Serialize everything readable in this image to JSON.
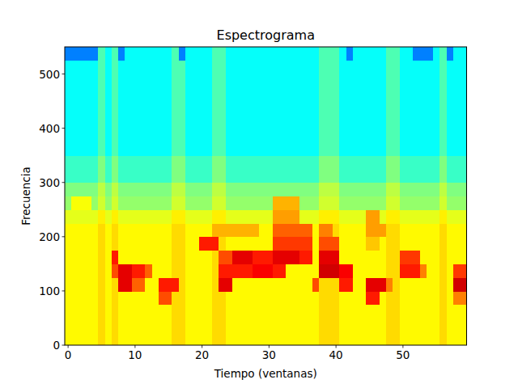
{
  "chart_data": {
    "type": "heatmap",
    "title": "Espectrograma",
    "x_label": "Tiempo (ventanas)",
    "y_label": "Frecuencia",
    "color": "jet",
    "x": [
      0,
      1,
      2,
      3,
      4,
      5,
      6,
      7,
      8,
      9,
      10,
      11,
      12,
      13,
      14,
      15,
      16,
      17,
      18,
      19,
      20,
      21,
      22,
      23,
      24,
      25,
      26,
      27,
      28,
      29,
      30,
      31,
      32,
      33,
      34,
      35,
      36,
      37,
      38,
      39,
      40,
      41,
      42,
      43,
      44,
      45,
      46,
      47,
      48,
      49,
      50,
      51,
      52,
      53,
      54,
      55,
      56,
      57,
      58,
      59
    ],
    "y_bins": [
      0,
      25,
      50,
      75,
      100,
      125,
      150,
      175,
      200,
      225,
      250,
      275,
      300,
      325,
      350,
      375,
      400,
      425,
      450,
      475,
      500,
      525,
      550
    ],
    "xlim": [
      -0.5,
      59.5
    ],
    "ylim": [
      0,
      550
    ],
    "xticks": [
      0,
      10,
      20,
      30,
      40,
      50
    ],
    "yticks": [
      0,
      100,
      200,
      300,
      400,
      500
    ],
    "zlim": [
      0,
      100
    ],
    "cells": [
      [
        63,
        63,
        63,
        63,
        63,
        66,
        63,
        66,
        63,
        63,
        63,
        63,
        63,
        63,
        63,
        63,
        66,
        66,
        63,
        63,
        63,
        63,
        66,
        66,
        63,
        63,
        63,
        63,
        63,
        63,
        63,
        63,
        63,
        63,
        63,
        63,
        63,
        63,
        66,
        66,
        66,
        63,
        63,
        63,
        63,
        63,
        63,
        63,
        66,
        66,
        63,
        63,
        63,
        63,
        63,
        63,
        66,
        63,
        63,
        63
      ],
      [
        63,
        63,
        63,
        63,
        63,
        66,
        63,
        66,
        63,
        63,
        63,
        63,
        63,
        63,
        63,
        63,
        66,
        66,
        63,
        63,
        63,
        63,
        66,
        66,
        63,
        63,
        63,
        63,
        63,
        63,
        63,
        63,
        63,
        63,
        63,
        63,
        63,
        63,
        66,
        66,
        66,
        63,
        63,
        63,
        63,
        63,
        63,
        63,
        66,
        66,
        63,
        63,
        63,
        63,
        63,
        63,
        66,
        63,
        63,
        63
      ],
      [
        63,
        63,
        63,
        63,
        63,
        66,
        63,
        66,
        63,
        63,
        63,
        63,
        63,
        63,
        63,
        63,
        66,
        66,
        63,
        63,
        63,
        63,
        66,
        66,
        63,
        63,
        63,
        63,
        63,
        63,
        63,
        63,
        63,
        63,
        63,
        63,
        63,
        63,
        66,
        66,
        66,
        63,
        63,
        63,
        63,
        63,
        63,
        63,
        66,
        66,
        63,
        63,
        63,
        63,
        63,
        63,
        66,
        63,
        63,
        63
      ],
      [
        63,
        63,
        63,
        63,
        63,
        66,
        63,
        66,
        63,
        63,
        63,
        63,
        63,
        63,
        80,
        80,
        66,
        66,
        63,
        63,
        63,
        63,
        66,
        66,
        63,
        63,
        63,
        63,
        63,
        63,
        63,
        63,
        63,
        63,
        63,
        63,
        63,
        63,
        66,
        66,
        66,
        63,
        63,
        63,
        63,
        85,
        85,
        63,
        66,
        66,
        63,
        63,
        63,
        63,
        63,
        63,
        66,
        63,
        75,
        75
      ],
      [
        63,
        63,
        63,
        63,
        63,
        66,
        63,
        66,
        90,
        90,
        78,
        78,
        63,
        63,
        85,
        85,
        85,
        66,
        63,
        63,
        63,
        63,
        66,
        90,
        90,
        63,
        63,
        63,
        63,
        63,
        63,
        63,
        63,
        63,
        63,
        63,
        63,
        80,
        66,
        66,
        66,
        85,
        85,
        63,
        63,
        90,
        90,
        90,
        75,
        66,
        63,
        63,
        63,
        63,
        63,
        63,
        66,
        63,
        92,
        92
      ],
      [
        63,
        63,
        63,
        63,
        63,
        66,
        63,
        80,
        90,
        90,
        85,
        85,
        78,
        63,
        63,
        63,
        66,
        66,
        63,
        63,
        63,
        63,
        66,
        85,
        85,
        85,
        85,
        85,
        88,
        88,
        88,
        85,
        85,
        63,
        63,
        63,
        63,
        63,
        92,
        92,
        92,
        88,
        88,
        63,
        63,
        63,
        63,
        63,
        66,
        66,
        85,
        85,
        85,
        75,
        63,
        63,
        66,
        63,
        82,
        82
      ],
      [
        63,
        63,
        63,
        63,
        63,
        66,
        63,
        85,
        63,
        63,
        63,
        63,
        63,
        63,
        63,
        63,
        66,
        66,
        63,
        63,
        63,
        63,
        66,
        80,
        80,
        90,
        90,
        90,
        85,
        85,
        85,
        90,
        90,
        90,
        90,
        85,
        85,
        63,
        90,
        90,
        90,
        63,
        63,
        63,
        63,
        63,
        63,
        63,
        66,
        66,
        82,
        82,
        82,
        63,
        63,
        63,
        66,
        63,
        63,
        63
      ],
      [
        63,
        63,
        63,
        63,
        63,
        66,
        63,
        66,
        63,
        63,
        63,
        63,
        63,
        63,
        63,
        63,
        66,
        66,
        63,
        63,
        85,
        85,
        85,
        66,
        63,
        63,
        63,
        63,
        63,
        63,
        63,
        82,
        82,
        82,
        82,
        82,
        82,
        63,
        80,
        80,
        80,
        63,
        63,
        63,
        63,
        68,
        68,
        63,
        66,
        66,
        63,
        63,
        63,
        63,
        63,
        63,
        66,
        63,
        63,
        63
      ],
      [
        63,
        63,
        63,
        63,
        63,
        66,
        63,
        66,
        63,
        63,
        63,
        63,
        63,
        63,
        63,
        63,
        66,
        66,
        63,
        63,
        63,
        63,
        70,
        70,
        70,
        70,
        70,
        70,
        70,
        63,
        63,
        78,
        78,
        78,
        78,
        78,
        78,
        63,
        75,
        75,
        66,
        63,
        63,
        63,
        63,
        72,
        72,
        72,
        66,
        66,
        63,
        63,
        63,
        63,
        63,
        63,
        66,
        63,
        63,
        63
      ],
      [
        60,
        60,
        60,
        60,
        60,
        64,
        60,
        64,
        60,
        60,
        60,
        60,
        60,
        60,
        60,
        60,
        64,
        64,
        60,
        60,
        60,
        60,
        64,
        64,
        60,
        60,
        60,
        60,
        60,
        60,
        60,
        72,
        72,
        72,
        72,
        60,
        60,
        60,
        64,
        64,
        64,
        60,
        60,
        60,
        60,
        72,
        72,
        60,
        64,
        64,
        60,
        60,
        60,
        60,
        60,
        60,
        64,
        60,
        60,
        60
      ],
      [
        52,
        62,
        62,
        62,
        52,
        58,
        52,
        58,
        52,
        52,
        52,
        52,
        52,
        52,
        52,
        52,
        58,
        58,
        52,
        52,
        52,
        52,
        58,
        58,
        52,
        52,
        52,
        52,
        52,
        52,
        52,
        70,
        70,
        70,
        70,
        52,
        52,
        52,
        58,
        58,
        58,
        52,
        52,
        52,
        52,
        52,
        52,
        52,
        58,
        58,
        52,
        52,
        52,
        52,
        52,
        52,
        58,
        52,
        52,
        52
      ],
      [
        50,
        50,
        50,
        50,
        50,
        56,
        50,
        56,
        50,
        50,
        50,
        50,
        50,
        50,
        50,
        50,
        56,
        56,
        50,
        50,
        50,
        50,
        56,
        56,
        50,
        50,
        50,
        50,
        50,
        50,
        50,
        50,
        50,
        50,
        50,
        50,
        50,
        50,
        56,
        56,
        56,
        50,
        50,
        50,
        50,
        50,
        50,
        50,
        56,
        56,
        50,
        50,
        50,
        50,
        50,
        50,
        56,
        50,
        50,
        50
      ],
      [
        43,
        43,
        43,
        43,
        43,
        50,
        43,
        50,
        43,
        43,
        43,
        43,
        43,
        43,
        43,
        43,
        50,
        50,
        43,
        43,
        43,
        43,
        50,
        50,
        43,
        43,
        43,
        43,
        43,
        43,
        43,
        43,
        43,
        43,
        43,
        43,
        43,
        43,
        50,
        50,
        50,
        43,
        43,
        43,
        43,
        43,
        43,
        43,
        50,
        50,
        43,
        43,
        43,
        43,
        43,
        43,
        50,
        43,
        43,
        43
      ],
      [
        43,
        43,
        43,
        43,
        43,
        50,
        43,
        50,
        43,
        43,
        43,
        43,
        43,
        43,
        43,
        43,
        50,
        50,
        43,
        43,
        43,
        43,
        50,
        50,
        43,
        43,
        43,
        43,
        43,
        43,
        43,
        43,
        43,
        43,
        43,
        43,
        43,
        43,
        50,
        50,
        50,
        43,
        43,
        43,
        43,
        43,
        43,
        43,
        50,
        50,
        43,
        43,
        43,
        43,
        43,
        43,
        50,
        43,
        43,
        43
      ],
      [
        38,
        38,
        38,
        38,
        38,
        45,
        38,
        45,
        38,
        38,
        38,
        38,
        38,
        38,
        38,
        38,
        45,
        45,
        38,
        38,
        38,
        38,
        45,
        45,
        38,
        38,
        38,
        38,
        38,
        38,
        38,
        38,
        38,
        38,
        38,
        38,
        38,
        38,
        45,
        45,
        45,
        38,
        38,
        38,
        38,
        38,
        38,
        38,
        45,
        45,
        38,
        38,
        38,
        38,
        38,
        38,
        45,
        38,
        38,
        38
      ],
      [
        38,
        38,
        38,
        38,
        38,
        45,
        38,
        45,
        38,
        38,
        38,
        38,
        38,
        38,
        38,
        38,
        45,
        45,
        38,
        38,
        38,
        38,
        45,
        45,
        38,
        38,
        38,
        38,
        38,
        38,
        38,
        38,
        38,
        38,
        38,
        38,
        38,
        38,
        45,
        45,
        45,
        38,
        38,
        38,
        38,
        38,
        38,
        38,
        45,
        45,
        38,
        38,
        38,
        38,
        38,
        38,
        45,
        38,
        38,
        38
      ],
      [
        38,
        38,
        38,
        38,
        38,
        45,
        38,
        45,
        38,
        38,
        38,
        38,
        38,
        38,
        38,
        38,
        45,
        45,
        38,
        38,
        38,
        38,
        45,
        45,
        38,
        38,
        38,
        38,
        38,
        38,
        38,
        38,
        38,
        38,
        38,
        38,
        38,
        38,
        45,
        45,
        45,
        38,
        38,
        38,
        38,
        38,
        38,
        38,
        45,
        45,
        38,
        38,
        38,
        38,
        38,
        38,
        45,
        38,
        38,
        38
      ],
      [
        38,
        38,
        38,
        38,
        38,
        45,
        38,
        45,
        38,
        38,
        38,
        38,
        38,
        38,
        38,
        38,
        45,
        45,
        38,
        38,
        38,
        38,
        45,
        45,
        38,
        38,
        38,
        38,
        38,
        38,
        38,
        38,
        38,
        38,
        38,
        38,
        38,
        38,
        45,
        45,
        45,
        38,
        38,
        38,
        38,
        38,
        38,
        38,
        45,
        45,
        38,
        38,
        38,
        38,
        38,
        38,
        45,
        38,
        38,
        38
      ],
      [
        38,
        38,
        38,
        38,
        38,
        45,
        38,
        45,
        38,
        38,
        38,
        38,
        38,
        38,
        38,
        38,
        45,
        45,
        38,
        38,
        38,
        38,
        45,
        45,
        38,
        38,
        38,
        38,
        38,
        38,
        38,
        38,
        38,
        38,
        38,
        38,
        38,
        38,
        45,
        45,
        45,
        38,
        38,
        38,
        38,
        38,
        38,
        38,
        45,
        45,
        38,
        38,
        38,
        38,
        38,
        38,
        45,
        38,
        38,
        38
      ],
      [
        38,
        38,
        38,
        38,
        38,
        45,
        38,
        45,
        38,
        38,
        38,
        38,
        38,
        38,
        38,
        38,
        45,
        45,
        38,
        38,
        38,
        38,
        45,
        45,
        38,
        38,
        38,
        38,
        38,
        38,
        38,
        38,
        38,
        38,
        38,
        38,
        38,
        38,
        45,
        45,
        45,
        38,
        38,
        38,
        38,
        38,
        38,
        38,
        45,
        45,
        38,
        38,
        38,
        38,
        38,
        38,
        45,
        38,
        38,
        38
      ],
      [
        38,
        38,
        38,
        38,
        38,
        45,
        38,
        45,
        38,
        38,
        38,
        38,
        38,
        38,
        38,
        38,
        45,
        45,
        38,
        38,
        38,
        38,
        45,
        45,
        38,
        38,
        38,
        38,
        38,
        38,
        38,
        38,
        38,
        38,
        38,
        38,
        38,
        38,
        45,
        45,
        45,
        38,
        38,
        38,
        38,
        38,
        38,
        38,
        45,
        45,
        38,
        38,
        38,
        38,
        38,
        38,
        45,
        38,
        38,
        38
      ],
      [
        25,
        25,
        25,
        25,
        25,
        45,
        38,
        45,
        25,
        38,
        38,
        38,
        38,
        38,
        38,
        38,
        45,
        25,
        38,
        38,
        38,
        38,
        45,
        45,
        38,
        38,
        38,
        38,
        38,
        38,
        38,
        38,
        38,
        38,
        38,
        38,
        38,
        38,
        45,
        45,
        45,
        38,
        25,
        38,
        38,
        38,
        38,
        38,
        45,
        45,
        38,
        38,
        25,
        25,
        25,
        38,
        45,
        25,
        38,
        38
      ]
    ]
  }
}
